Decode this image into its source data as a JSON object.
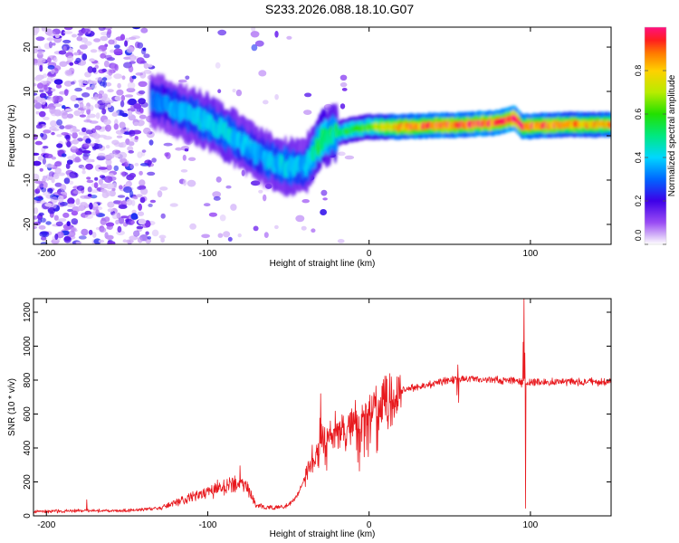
{
  "title": "S233.2026.088.18.10.G07",
  "chart_data": [
    {
      "type": "heatmap",
      "name": "spectrogram",
      "xlabel": "Height of straight line (km)",
      "ylabel": "Frequency (Hz)",
      "xlim": [
        -208,
        150
      ],
      "ylim": [
        -24.5,
        24.5
      ],
      "xticks": [
        -200,
        -100,
        0,
        100
      ],
      "yticks": [
        -20,
        -10,
        0,
        10,
        20
      ],
      "colorbar": {
        "label": "Normalized spectral amplitude",
        "range": [
          0,
          1
        ],
        "ticks": [
          "0.0",
          "0.2",
          "0.4",
          "0.6",
          "0.8"
        ],
        "tick_values": [
          0,
          0.2,
          0.4,
          0.6,
          0.8
        ]
      },
      "ridge": {
        "x": [
          -135,
          -120,
          -100,
          -85,
          -70,
          -60,
          -50,
          -40,
          -35,
          -30,
          -25,
          -20,
          -10,
          0,
          20,
          40,
          60,
          80,
          90,
          95,
          100,
          120,
          150
        ],
        "y": [
          8,
          6,
          3,
          0,
          -4,
          -6,
          -7,
          -7,
          -4,
          -1,
          0,
          0.5,
          1.5,
          2,
          2,
          2.3,
          2.5,
          3,
          4,
          2,
          2.2,
          2.5,
          2.5
        ],
        "amplitude": [
          0.3,
          0.35,
          0.4,
          0.4,
          0.35,
          0.38,
          0.4,
          0.35,
          0.45,
          0.55,
          0.5,
          0.5,
          0.55,
          0.6,
          0.85,
          0.88,
          0.9,
          0.92,
          1.0,
          0.9,
          0.9,
          0.85,
          0.8
        ]
      }
    },
    {
      "type": "line",
      "name": "snr",
      "xlabel": "Height of straight line (km)",
      "ylabel": "SNR (10 * v/v)",
      "xlim": [
        -208,
        150
      ],
      "ylim": [
        0,
        1280
      ],
      "xticks": [
        -200,
        -100,
        0,
        100
      ],
      "yticks": [
        0,
        200,
        400,
        600,
        800,
        1000,
        1200
      ],
      "color": "#e8191e",
      "envelope": {
        "x": [
          -208,
          -180,
          -150,
          -130,
          -120,
          -110,
          -100,
          -90,
          -80,
          -75,
          -70,
          -60,
          -50,
          -45,
          -40,
          -35,
          -30,
          -25,
          -20,
          -15,
          -10,
          -5,
          0,
          10,
          20,
          30,
          40,
          50,
          60,
          70,
          80,
          90,
          95,
          100,
          110,
          120,
          130,
          150
        ],
        "y": [
          25,
          30,
          30,
          45,
          80,
          110,
          140,
          170,
          190,
          170,
          60,
          45,
          60,
          110,
          220,
          350,
          420,
          450,
          480,
          500,
          520,
          550,
          600,
          700,
          740,
          760,
          780,
          800,
          810,
          800,
          800,
          800,
          780,
          790,
          790,
          790,
          790,
          790
        ]
      },
      "spikes": [
        {
          "x": -175,
          "y": 95
        },
        {
          "x": -80,
          "y": 295
        },
        {
          "x": -30,
          "y": 720
        },
        {
          "x": 55,
          "y": 890
        },
        {
          "x": 96,
          "y": 1280
        },
        {
          "x": 97,
          "y": 45
        }
      ]
    }
  ]
}
